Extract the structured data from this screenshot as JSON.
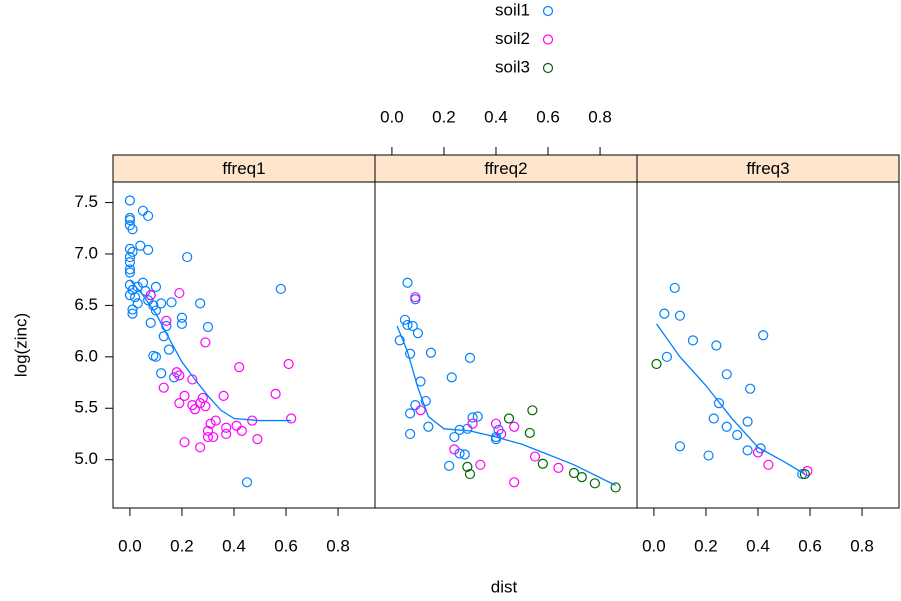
{
  "chart_data": {
    "type": "scatter",
    "xlabel": "dist",
    "ylabel": "log(zinc)",
    "xlim": [
      -0.065,
      0.942
    ],
    "ylim": [
      4.53,
      7.7
    ],
    "xticks": [
      {
        "value": 0,
        "label": "0.0"
      },
      0.2,
      0.4,
      0.6,
      0.8
    ],
    "yticks": [
      {
        "value": 5,
        "label": "5.0"
      },
      5.5,
      {
        "value": 6,
        "label": "6.0"
      },
      6.5,
      {
        "value": 7,
        "label": "7.0"
      },
      7.5
    ],
    "series": [
      {
        "name": "soil1",
        "color": "#0080ff"
      },
      {
        "name": "soil2",
        "color": "#ff00ff"
      },
      {
        "name": "soil3",
        "color": "#006400"
      }
    ],
    "smooth_color": "#0080ff",
    "strip_color": "#ffe5cc",
    "panels": [
      {
        "name": "ffreq1",
        "xaxis_side": "bottom",
        "groups": [
          {
            "x": [
              0.0,
              0.0,
              0.0,
              0.0,
              0.01,
              0.05,
              0.07,
              0.0,
              0.01,
              0.0,
              0.0,
              0.0,
              0.0,
              0.04,
              0.07,
              0.22,
              0.0,
              0.01,
              0.0,
              0.02,
              0.03,
              0.01,
              0.01,
              0.05,
              0.03,
              0.06,
              0.08,
              0.1,
              0.07,
              0.09,
              0.12,
              0.16,
              0.1,
              0.08,
              0.2,
              0.2,
              0.27,
              0.3,
              0.58,
              0.14,
              0.13,
              0.09,
              0.1,
              0.15,
              0.17,
              0.12,
              0.45
            ],
            "y": [
              7.52,
              7.35,
              7.33,
              7.28,
              7.24,
              7.42,
              7.37,
              7.05,
              7.02,
              6.97,
              6.92,
              6.85,
              6.82,
              7.08,
              7.04,
              6.97,
              6.7,
              6.65,
              6.6,
              6.58,
              6.52,
              6.46,
              6.42,
              6.72,
              6.68,
              6.64,
              6.6,
              6.68,
              6.55,
              6.5,
              6.52,
              6.53,
              6.45,
              6.33,
              6.38,
              6.32,
              6.52,
              6.29,
              6.66,
              6.3,
              6.2,
              6.01,
              6.0,
              6.07,
              5.8,
              5.84,
              4.78
            ]
          },
          {
            "x": [
              0.19,
              0.08,
              0.29,
              0.14,
              0.13,
              0.18,
              0.19,
              0.19,
              0.21,
              0.24,
              0.25,
              0.27,
              0.28,
              0.29,
              0.27,
              0.21,
              0.3,
              0.3,
              0.31,
              0.32,
              0.33,
              0.36,
              0.37,
              0.37,
              0.42,
              0.41,
              0.43,
              0.47,
              0.49,
              0.56,
              0.61,
              0.62,
              0.24
            ],
            "y": [
              6.62,
              6.6,
              6.14,
              6.35,
              5.7,
              5.85,
              5.82,
              5.55,
              5.62,
              5.78,
              5.49,
              5.55,
              5.6,
              5.52,
              5.12,
              5.17,
              5.28,
              5.22,
              5.35,
              5.22,
              5.38,
              5.62,
              5.31,
              5.25,
              5.9,
              5.33,
              5.28,
              5.38,
              5.2,
              5.64,
              5.93,
              5.4,
              5.53
            ]
          },
          {
            "x": [],
            "y": []
          }
        ],
        "smooth": {
          "x": [
            0,
            0.05,
            0.1,
            0.15,
            0.2,
            0.25,
            0.3,
            0.35,
            0.4,
            0.5,
            0.62
          ],
          "y": [
            6.75,
            6.6,
            6.42,
            6.18,
            5.95,
            5.78,
            5.62,
            5.48,
            5.4,
            5.38,
            5.38
          ]
        }
      },
      {
        "name": "ffreq2",
        "xaxis_side": "top",
        "groups": [
          {
            "x": [
              0.06,
              0.03,
              0.05,
              0.06,
              0.08,
              0.09,
              0.1,
              0.15,
              0.07,
              0.11,
              0.13,
              0.09,
              0.07,
              0.07,
              0.14,
              0.23,
              0.3,
              0.22,
              0.26,
              0.24,
              0.26,
              0.28,
              0.29,
              0.31,
              0.33,
              0.4,
              0.41,
              0.4
            ],
            "y": [
              6.72,
              6.16,
              6.36,
              6.31,
              6.3,
              6.56,
              6.23,
              6.04,
              6.03,
              5.76,
              5.57,
              5.53,
              5.45,
              5.25,
              5.32,
              5.8,
              5.99,
              4.94,
              5.06,
              5.22,
              5.29,
              5.05,
              5.3,
              5.41,
              5.42,
              5.2,
              5.29,
              5.22
            ]
          },
          {
            "x": [
              0.09,
              0.11,
              0.24,
              0.31,
              0.34,
              0.4,
              0.42,
              0.47,
              0.47,
              0.55,
              0.64
            ],
            "y": [
              6.58,
              5.48,
              5.1,
              5.35,
              4.95,
              5.35,
              5.25,
              5.32,
              4.78,
              5.03,
              4.92
            ]
          },
          {
            "x": [
              0.29,
              0.3,
              0.45,
              0.53,
              0.54,
              0.58,
              0.7,
              0.73,
              0.78,
              0.86
            ],
            "y": [
              4.93,
              4.86,
              5.4,
              5.26,
              5.48,
              4.96,
              4.87,
              4.83,
              4.77,
              4.73
            ]
          }
        ],
        "smooth": {
          "x": [
            0.02,
            0.06,
            0.1,
            0.14,
            0.2,
            0.3,
            0.4,
            0.5,
            0.6,
            0.7,
            0.86
          ],
          "y": [
            6.3,
            6.05,
            5.7,
            5.42,
            5.3,
            5.28,
            5.22,
            5.15,
            5.05,
            4.95,
            4.75
          ]
        }
      },
      {
        "name": "ffreq3",
        "xaxis_side": "bottom",
        "groups": [
          {
            "x": [
              0.08,
              0.04,
              0.1,
              0.05,
              0.15,
              0.24,
              0.42,
              0.1,
              0.28,
              0.37,
              0.25,
              0.23,
              0.28,
              0.32,
              0.36,
              0.36,
              0.41,
              0.21,
              0.57
            ],
            "y": [
              6.67,
              6.42,
              6.4,
              6.0,
              6.16,
              6.11,
              6.21,
              5.13,
              5.83,
              5.69,
              5.55,
              5.4,
              5.32,
              5.24,
              5.37,
              5.09,
              5.11,
              5.04,
              4.86
            ]
          },
          {
            "x": [
              0.4,
              0.44,
              0.59
            ],
            "y": [
              5.07,
              4.95,
              4.89
            ]
          },
          {
            "x": [
              0.01,
              0.58
            ],
            "y": [
              5.93,
              4.86
            ]
          }
        ],
        "smooth": {
          "x": [
            0.01,
            0.1,
            0.2,
            0.3,
            0.4,
            0.5,
            0.58
          ],
          "y": [
            6.32,
            6.0,
            5.72,
            5.4,
            5.12,
            4.98,
            4.86
          ]
        }
      }
    ]
  }
}
